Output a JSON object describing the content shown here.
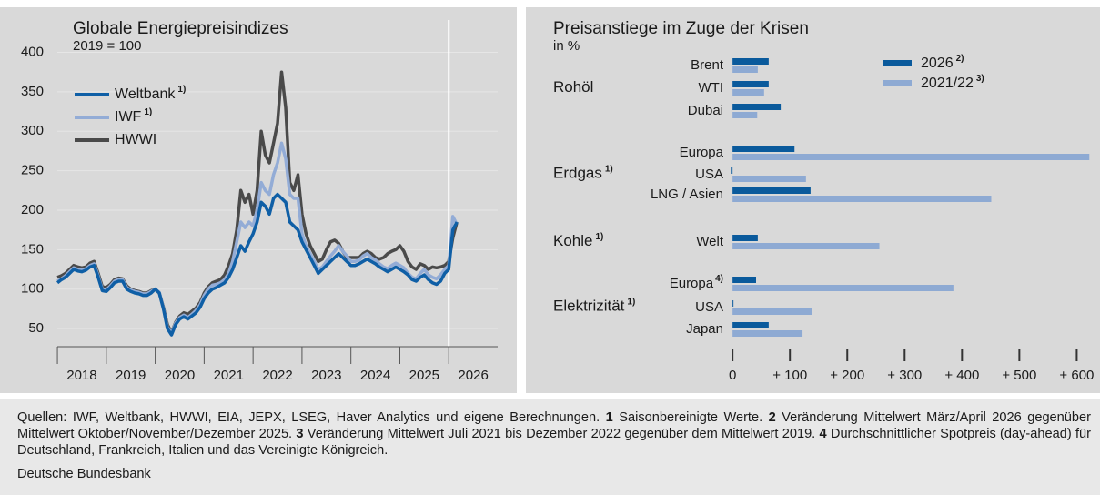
{
  "chart_data": [
    {
      "type": "line",
      "title": "Globale Energiepreisindizes",
      "subtitle": "2019 = 100",
      "x": [
        2018,
        2018.083,
        2018.167,
        2018.25,
        2018.333,
        2018.417,
        2018.5,
        2018.583,
        2018.667,
        2018.75,
        2018.833,
        2018.917,
        2019,
        2019.083,
        2019.167,
        2019.25,
        2019.333,
        2019.417,
        2019.5,
        2019.583,
        2019.667,
        2019.75,
        2019.833,
        2019.917,
        2020,
        2020.083,
        2020.167,
        2020.25,
        2020.333,
        2020.417,
        2020.5,
        2020.583,
        2020.667,
        2020.75,
        2020.833,
        2020.917,
        2021,
        2021.083,
        2021.167,
        2021.25,
        2021.333,
        2021.417,
        2021.5,
        2021.583,
        2021.667,
        2021.75,
        2021.833,
        2021.917,
        2022,
        2022.083,
        2022.167,
        2022.25,
        2022.333,
        2022.417,
        2022.5,
        2022.583,
        2022.667,
        2022.75,
        2022.833,
        2022.917,
        2023,
        2023.083,
        2023.167,
        2023.25,
        2023.333,
        2023.417,
        2023.5,
        2023.583,
        2023.667,
        2023.75,
        2023.833,
        2023.917,
        2024,
        2024.083,
        2024.167,
        2024.25,
        2024.333,
        2024.417,
        2024.5,
        2024.583,
        2024.667,
        2024.75,
        2024.833,
        2024.917,
        2025,
        2025.083,
        2025.167,
        2025.25,
        2025.333,
        2025.417,
        2025.5,
        2025.583,
        2025.667,
        2025.75,
        2025.833,
        2025.917,
        2026,
        2026.083,
        2026.167
      ],
      "series": [
        {
          "name": "Weltbank",
          "note": "1)",
          "color": "#0f5fa6",
          "values": [
            108,
            112,
            115,
            120,
            125,
            123,
            122,
            124,
            128,
            130,
            115,
            98,
            97,
            102,
            108,
            110,
            110,
            100,
            97,
            95,
            94,
            92,
            92,
            95,
            100,
            95,
            75,
            50,
            42,
            55,
            62,
            65,
            62,
            66,
            70,
            77,
            88,
            95,
            100,
            102,
            105,
            108,
            115,
            125,
            140,
            155,
            148,
            160,
            170,
            185,
            210,
            205,
            195,
            215,
            220,
            215,
            210,
            185,
            180,
            175,
            160,
            150,
            140,
            130,
            120,
            125,
            130,
            135,
            140,
            145,
            140,
            135,
            130,
            130,
            132,
            135,
            138,
            135,
            132,
            128,
            125,
            122,
            125,
            128,
            125,
            122,
            118,
            112,
            110,
            115,
            118,
            112,
            108,
            106,
            110,
            120,
            125,
            175,
            185
          ]
        },
        {
          "name": "IWF",
          "note": "1)",
          "color": "#93acd6",
          "values": [
            110,
            113,
            117,
            122,
            127,
            125,
            124,
            126,
            130,
            132,
            117,
            100,
            99,
            104,
            110,
            112,
            112,
            102,
            99,
            97,
            96,
            94,
            94,
            97,
            100,
            96,
            76,
            52,
            44,
            57,
            64,
            67,
            64,
            68,
            73,
            80,
            92,
            100,
            105,
            106,
            108,
            112,
            120,
            135,
            160,
            185,
            178,
            185,
            180,
            200,
            235,
            225,
            220,
            245,
            260,
            285,
            265,
            220,
            215,
            215,
            170,
            155,
            145,
            135,
            125,
            128,
            135,
            142,
            148,
            155,
            148,
            142,
            135,
            135,
            137,
            142,
            145,
            140,
            137,
            132,
            128,
            126,
            130,
            133,
            130,
            127,
            120,
            115,
            113,
            120,
            125,
            118,
            115,
            113,
            118,
            125,
            130,
            192,
            182
          ]
        },
        {
          "name": "HWWI",
          "color": "#4a4a4a",
          "values": [
            115,
            117,
            120,
            125,
            130,
            128,
            127,
            128,
            133,
            135,
            120,
            103,
            102,
            106,
            112,
            114,
            113,
            104,
            100,
            98,
            97,
            95,
            95,
            98,
            100,
            95,
            77,
            55,
            45,
            58,
            66,
            70,
            68,
            72,
            76,
            83,
            95,
            103,
            108,
            110,
            112,
            118,
            130,
            145,
            175,
            225,
            210,
            220,
            195,
            225,
            300,
            270,
            260,
            285,
            310,
            375,
            330,
            235,
            225,
            245,
            195,
            170,
            155,
            145,
            135,
            138,
            150,
            160,
            162,
            158,
            148,
            140,
            140,
            140,
            140,
            145,
            148,
            145,
            140,
            138,
            140,
            145,
            148,
            150,
            155,
            148,
            135,
            128,
            125,
            132,
            130,
            125,
            128,
            127,
            128,
            130,
            135,
            165,
            185
          ]
        }
      ],
      "xlim": [
        2017.85,
        2027.0
      ],
      "xticks": [
        2018,
        2019,
        2020,
        2021,
        2022,
        2023,
        2024,
        2025,
        2026
      ],
      "ylim": [
        27,
        441
      ],
      "yticks": [
        50,
        100,
        150,
        200,
        250,
        300,
        350,
        400
      ],
      "legend": "upper-left"
    },
    {
      "type": "hbar",
      "title": "Preisanstiege im Zuge der Krisen",
      "subtitle": "in %",
      "groups": [
        {
          "name": "Rohöl",
          "categories": [
            "Brent",
            "WTI",
            "Dubai"
          ]
        },
        {
          "name": "Erdgas",
          "note": "1)",
          "categories": [
            "Europa",
            "USA",
            "LNG / Asien"
          ]
        },
        {
          "name": "Kohle",
          "note": "1)",
          "categories": [
            "Welt"
          ]
        },
        {
          "name": "Elektrizität",
          "note": "1)",
          "categories": [
            {
              "label": "Europa",
              "note": "4)"
            },
            "USA",
            "Japan"
          ]
        }
      ],
      "series": [
        {
          "name": "2026",
          "note": "2)",
          "color": "#0a5a9c",
          "values": [
            63,
            63,
            84,
            108,
            -3,
            136,
            44,
            41,
            1,
            63
          ]
        },
        {
          "name": "2021/22",
          "note": "3)",
          "color": "#8eaad3",
          "values": [
            44,
            55,
            43,
            622,
            128,
            451,
            256,
            385,
            139,
            122
          ]
        }
      ],
      "xlim": [
        -5,
        639
      ],
      "xticks": [
        0,
        {
          "value": 100,
          "label": "+ 100"
        },
        {
          "value": 200,
          "label": "+ 200"
        },
        {
          "value": 300,
          "label": "+ 300"
        },
        {
          "value": 400,
          "label": "+ 400"
        },
        {
          "value": 500,
          "label": "+ 500"
        },
        {
          "value": 600,
          "label": "+ 600"
        }
      ],
      "legend": "upper-right"
    }
  ],
  "footer": {
    "sources": "Quellen: IWF, Weltbank, HWWI, EIA, JEPX, LSEG, Haver Analytics und eigene Berechnungen.",
    "notes": [
      {
        "number": "1",
        "text": "Saisonbereinigte Werte."
      },
      {
        "number": "2",
        "text": "Veränderung Mittelwert März/April 2026 gegenüber Mittelwert Oktober/November/Dezember 2025."
      },
      {
        "number": "3",
        "text": "Veränderung Mittelwert Juli 2021 bis Dezember 2022 gegenüber dem Mittelwert 2019."
      },
      {
        "number": "4",
        "text": "Durchschnittlicher Spotpreis (day-ahead) für Deutschland, Frankreich, Italien und das Vereinigte Königreich."
      }
    ],
    "publisher": "Deutsche Bundesbank"
  }
}
